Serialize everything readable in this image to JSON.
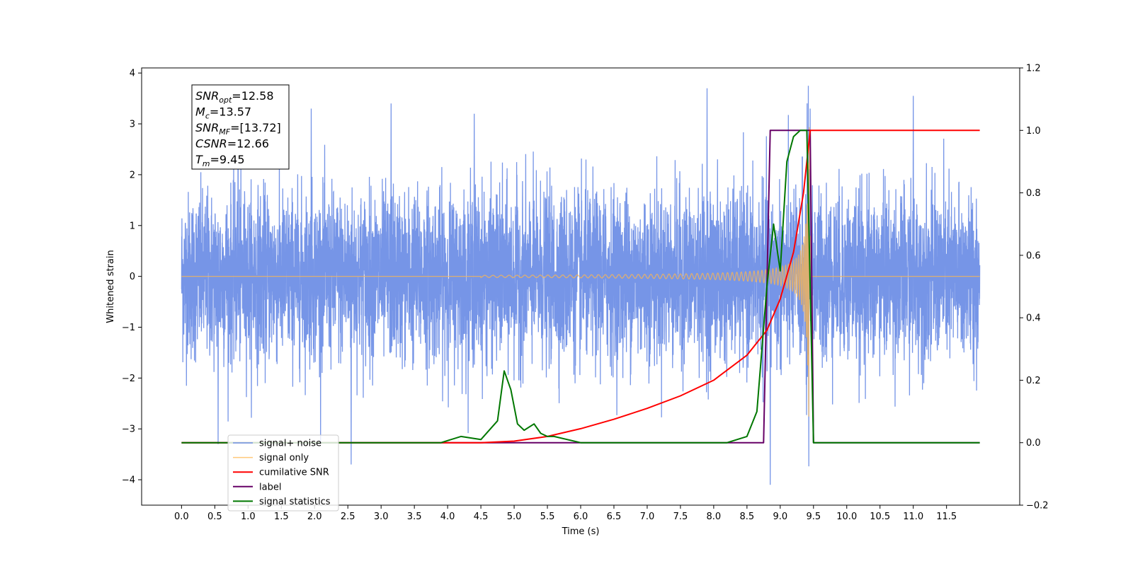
{
  "chart_data": {
    "type": "line",
    "title": "",
    "xlabel": "Time (s)",
    "ylabel": "Whitened strain",
    "xlim": [
      -0.6,
      12.6
    ],
    "ylim": [
      -4.5,
      4.1
    ],
    "y2lim": [
      -0.2,
      1.2
    ],
    "x_ticks": [
      "0.0",
      "0.5",
      "1.0",
      "1.5",
      "2.0",
      "2.5",
      "3.0",
      "3.5",
      "4.0",
      "4.5",
      "5.0",
      "5.5",
      "6.0",
      "6.5",
      "7.0",
      "7.5",
      "8.0",
      "8.5",
      "9.0",
      "9.5",
      "10.0",
      "10.5",
      "11.0",
      "11.5"
    ],
    "y_ticks": [
      "4",
      "3",
      "2",
      "1",
      "0",
      "−1",
      "−2",
      "−3",
      "−4"
    ],
    "y2_ticks": [
      "1.2",
      "1.0",
      "0.8",
      "0.6",
      "0.4",
      "0.2",
      "0.0",
      "−0.2"
    ],
    "grid": false,
    "legend_position": "lower-left",
    "annotation": [
      {
        "sym": "SNR",
        "sub": "opt",
        "value": "=12.58"
      },
      {
        "sym": "M",
        "sub": "c",
        "value": "=13.57"
      },
      {
        "sym": "SNR",
        "sub": "MF",
        "value": "=[13.72]"
      },
      {
        "sym": "CSNR",
        "sub": "",
        "value": "=12.66"
      },
      {
        "sym": "T",
        "sub": "m",
        "value": "=9.45"
      }
    ],
    "series": [
      {
        "name": "signal+ noise",
        "color": "#6f8fe6",
        "axis": "left",
        "x_range": [
          0.0,
          12.0
        ],
        "noise_std": 1.0,
        "peak_values": [
          {
            "x": 0.55,
            "y": -3.3
          },
          {
            "x": 0.85,
            "y": 3.2
          },
          {
            "x": 1.95,
            "y": 3.3
          },
          {
            "x": 2.55,
            "y": -3.7
          },
          {
            "x": 3.15,
            "y": 3.4
          },
          {
            "x": 4.4,
            "y": 3.2
          },
          {
            "x": 7.9,
            "y": 3.7
          },
          {
            "x": 8.85,
            "y": -4.1
          },
          {
            "x": 9.45,
            "y": 3.3
          },
          {
            "x": 11.0,
            "y": 3.55
          }
        ]
      },
      {
        "name": "signal only",
        "color": "#ffb74d",
        "axis": "left",
        "chirp": {
          "start": 4.5,
          "merger": 9.45,
          "peak_amplitude": 3.0
        }
      },
      {
        "name": "cumilative SNR",
        "color": "#ff0000",
        "axis": "right",
        "x": [
          0.0,
          4.0,
          4.5,
          5.0,
          5.5,
          6.0,
          6.5,
          7.0,
          7.5,
          8.0,
          8.5,
          8.8,
          9.0,
          9.2,
          9.35,
          9.45,
          9.5,
          12.0
        ],
        "values": [
          0.0,
          0.0,
          0.0,
          0.005,
          0.02,
          0.045,
          0.075,
          0.11,
          0.15,
          0.2,
          0.28,
          0.36,
          0.46,
          0.61,
          0.8,
          1.0,
          1.0,
          1.0
        ]
      },
      {
        "name": "label",
        "color": "#660066",
        "axis": "right",
        "x": [
          0.0,
          8.75,
          8.85,
          9.45,
          9.5,
          12.0
        ],
        "values": [
          0.0,
          0.0,
          1.0,
          1.0,
          0.0,
          0.0
        ]
      },
      {
        "name": "signal statistics",
        "color": "#007700",
        "axis": "right",
        "x": [
          0.0,
          3.9,
          4.2,
          4.5,
          4.75,
          4.85,
          4.95,
          5.05,
          5.15,
          5.3,
          5.4,
          5.5,
          5.6,
          6.0,
          8.2,
          8.5,
          8.65,
          8.8,
          8.9,
          9.0,
          9.1,
          9.2,
          9.3,
          9.4,
          9.5,
          12.0
        ],
        "values": [
          0.0,
          0.0,
          0.02,
          0.01,
          0.07,
          0.23,
          0.17,
          0.06,
          0.04,
          0.06,
          0.03,
          0.02,
          0.02,
          0.0,
          0.0,
          0.02,
          0.1,
          0.5,
          0.7,
          0.55,
          0.9,
          0.98,
          1.0,
          1.0,
          0.0,
          0.0
        ]
      }
    ],
    "legend": [
      "signal+ noise",
      "signal only",
      "cumilative SNR",
      "label",
      "signal statistics"
    ]
  }
}
